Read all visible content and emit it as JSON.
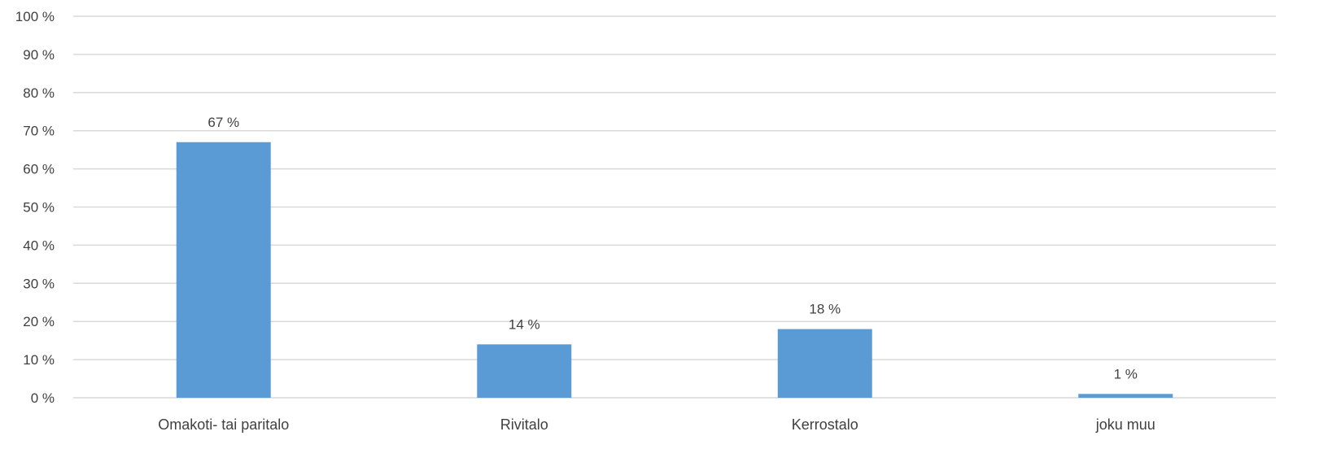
{
  "chart_data": {
    "type": "bar",
    "categories": [
      "Omakoti- tai paritalo",
      "Rivitalo",
      "Kerrostalo",
      "joku muu"
    ],
    "values": [
      67,
      14,
      18,
      1
    ],
    "data_labels": [
      "67 %",
      "14 %",
      "18 %",
      "1 %"
    ],
    "ylim": [
      0,
      100
    ],
    "yticks": [
      0,
      10,
      20,
      30,
      40,
      50,
      60,
      70,
      80,
      90,
      100
    ],
    "ytick_labels": [
      "0 %",
      "10 %",
      "20 %",
      "30 %",
      "40 %",
      "50 %",
      "60 %",
      "70 %",
      "80 %",
      "90 %",
      "100 %"
    ],
    "grid": true,
    "legend": "none",
    "colors": {
      "bar": "#5b9bd5",
      "grid": "#d9d9d9",
      "text": "#404040"
    }
  }
}
